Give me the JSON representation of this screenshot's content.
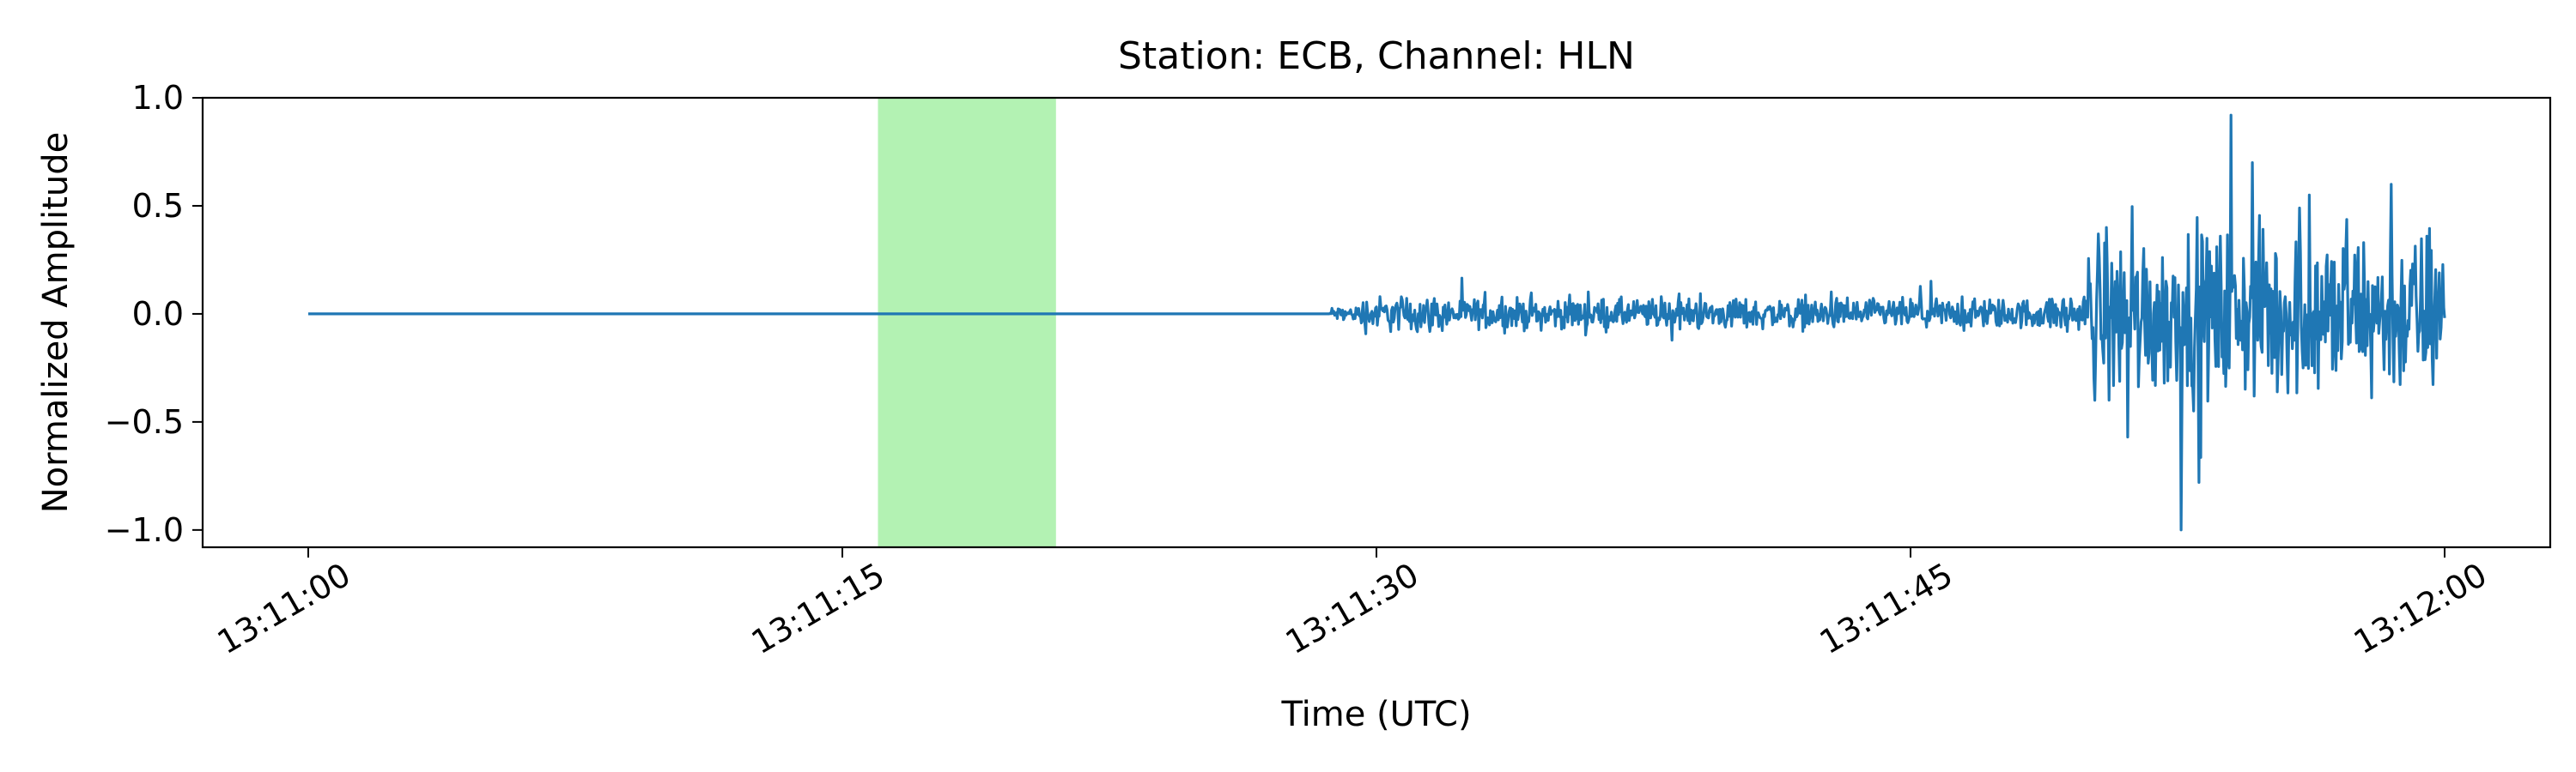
{
  "chart_data": {
    "type": "line",
    "title": "Station: ECB, Channel: HLN",
    "xlabel": "Time (UTC)",
    "ylabel": "Normalized Amplitude",
    "x_range_seconds": [
      0,
      60
    ],
    "x_axis_start": "13:11:00",
    "ylim": [
      -1.08,
      1.0
    ],
    "x_ticks": [
      {
        "value": 0,
        "label": "13:11:00"
      },
      {
        "value": 15,
        "label": "13:11:15"
      },
      {
        "value": 30,
        "label": "13:11:30"
      },
      {
        "value": 45,
        "label": "13:11:45"
      },
      {
        "value": 60,
        "label": "13:12:00"
      }
    ],
    "y_ticks": [
      {
        "value": 1.0,
        "label": "1.0"
      },
      {
        "value": 0.5,
        "label": "0.5"
      },
      {
        "value": 0.0,
        "label": "0.0"
      },
      {
        "value": -0.5,
        "label": "−0.5"
      },
      {
        "value": -1.0,
        "label": "−1.0"
      }
    ],
    "highlight_span": {
      "x_start": 16.0,
      "x_end": 21.0,
      "color": "#b3f2b3"
    },
    "series": [
      {
        "color": "#1f77b4",
        "segments": [
          {
            "x_start": 0.0,
            "x_end": 28.7,
            "amplitude": 0.0
          },
          {
            "x_start": 28.7,
            "x_end": 29.5,
            "amplitude": 0.05
          },
          {
            "x_start": 29.5,
            "x_end": 32.0,
            "amplitude": 0.12
          },
          {
            "x_start": 32.0,
            "x_end": 49.0,
            "amplitude": 0.1
          },
          {
            "x_start": 49.0,
            "x_end": 50.0,
            "amplitude": 0.13
          },
          {
            "x_start": 50.0,
            "x_end": 60.0,
            "amplitude": 0.55
          }
        ],
        "peaks": [
          {
            "x": 52.6,
            "y": -1.0
          },
          {
            "x": 53.1,
            "y": -0.78
          },
          {
            "x": 54.0,
            "y": 0.92
          },
          {
            "x": 54.6,
            "y": 0.7
          },
          {
            "x": 56.2,
            "y": 0.55
          },
          {
            "x": 58.5,
            "y": 0.6
          },
          {
            "x": 50.5,
            "y": 0.4
          },
          {
            "x": 51.1,
            "y": -0.57
          }
        ]
      }
    ]
  }
}
